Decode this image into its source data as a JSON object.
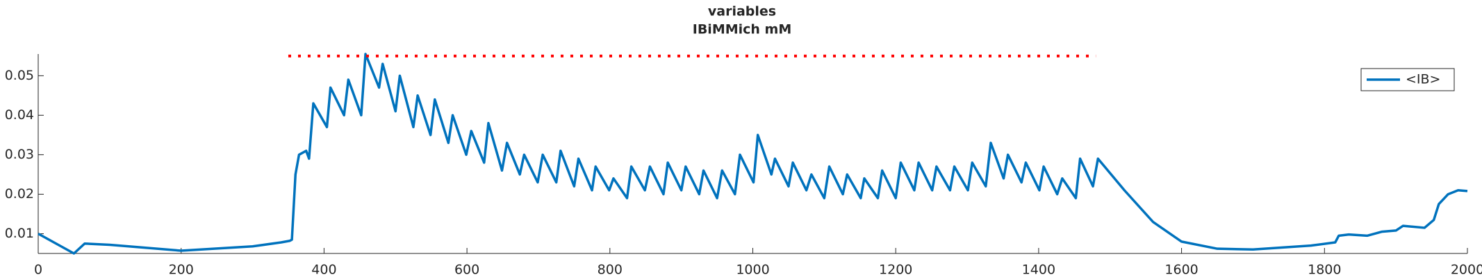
{
  "chart_data": {
    "type": "line",
    "title": "variables",
    "subtitle": "IBiMMich mM",
    "x": [
      0,
      50,
      65,
      100,
      200,
      300,
      340,
      352,
      355,
      360,
      365,
      375,
      379,
      385,
      404,
      409,
      428,
      434,
      452,
      458,
      477,
      482,
      500,
      506,
      525,
      531,
      549,
      555,
      574,
      580,
      599,
      606,
      624,
      630,
      649,
      656,
      674,
      680,
      699,
      706,
      725,
      731,
      750,
      756,
      775,
      780,
      799,
      805,
      824,
      830,
      849,
      856,
      875,
      881,
      900,
      906,
      925,
      931,
      950,
      957,
      975,
      982,
      1001,
      1007,
      1026,
      1031,
      1050,
      1056,
      1075,
      1082,
      1100,
      1107,
      1126,
      1132,
      1151,
      1156,
      1175,
      1181,
      1200,
      1207,
      1226,
      1232,
      1251,
      1257,
      1276,
      1282,
      1301,
      1307,
      1326,
      1333,
      1351,
      1357,
      1376,
      1382,
      1401,
      1407,
      1426,
      1433,
      1452,
      1458,
      1476,
      1483,
      1520,
      1560,
      1600,
      1650,
      1700,
      1781,
      1815,
      1820,
      1834,
      1860,
      1880,
      1900,
      1910,
      1940,
      1953,
      1960,
      1973,
      1987,
      2000
    ],
    "series": [
      {
        "name": "<IB>",
        "color": "#0072bd",
        "values": [
          0.01,
          0.005,
          0.0075,
          0.0072,
          0.0057,
          0.0068,
          0.0078,
          0.0082,
          0.0085,
          0.025,
          0.03,
          0.031,
          0.029,
          0.043,
          0.037,
          0.047,
          0.04,
          0.049,
          0.04,
          0.0555,
          0.047,
          0.053,
          0.041,
          0.05,
          0.037,
          0.045,
          0.035,
          0.044,
          0.033,
          0.04,
          0.03,
          0.036,
          0.028,
          0.038,
          0.026,
          0.033,
          0.025,
          0.03,
          0.023,
          0.03,
          0.023,
          0.031,
          0.022,
          0.029,
          0.021,
          0.027,
          0.021,
          0.024,
          0.019,
          0.027,
          0.021,
          0.027,
          0.02,
          0.028,
          0.021,
          0.027,
          0.02,
          0.026,
          0.019,
          0.026,
          0.02,
          0.03,
          0.023,
          0.035,
          0.025,
          0.029,
          0.022,
          0.028,
          0.021,
          0.025,
          0.019,
          0.027,
          0.02,
          0.025,
          0.019,
          0.024,
          0.019,
          0.026,
          0.019,
          0.028,
          0.021,
          0.028,
          0.021,
          0.027,
          0.021,
          0.027,
          0.021,
          0.028,
          0.022,
          0.033,
          0.024,
          0.03,
          0.023,
          0.028,
          0.021,
          0.027,
          0.02,
          0.024,
          0.019,
          0.029,
          0.022,
          0.029,
          0.021,
          0.013,
          0.008,
          0.0062,
          0.006,
          0.007,
          0.0078,
          0.0095,
          0.0098,
          0.0095,
          0.0105,
          0.0108,
          0.012,
          0.0115,
          0.0135,
          0.0175,
          0.02,
          0.021,
          0.0208
        ]
      }
    ],
    "stimulus": {
      "x": [
        350,
        1480
      ],
      "values": [
        0.055,
        0.055
      ],
      "color": "#ff0000"
    },
    "xlim": [
      0,
      2000
    ],
    "xticks": [
      0,
      200,
      400,
      600,
      800,
      1000,
      1200,
      1400,
      1600,
      1800,
      2000
    ],
    "ylim": [
      0.005,
      0.0555
    ],
    "yticks": [
      0.01,
      0.02,
      0.03,
      0.04,
      0.05
    ],
    "grid": false,
    "legend": "upper right"
  }
}
